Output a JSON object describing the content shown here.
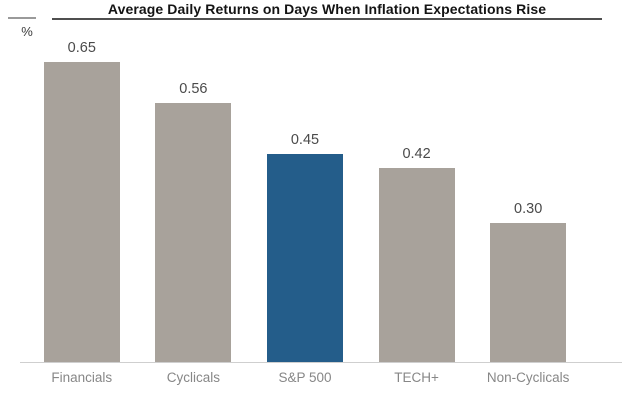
{
  "header": {
    "title": "Average Daily Returns on Days When Inflation Expectations Rise",
    "unit_label": "%"
  },
  "colors": {
    "bar_default": "#a8a29b",
    "bar_highlight": "#245d8a",
    "axis_line": "#cfcfcf",
    "title_underline": "#4f4f4f",
    "top_tick_line": "#9a9a9a",
    "value_label_text": "#4a4a4a",
    "category_label_text": "#878787",
    "title_text": "#141414"
  },
  "chart_data": {
    "type": "bar",
    "title": "Average Daily Returns on Days When Inflation Expectations Rise",
    "ylabel": "%",
    "xlabel": "",
    "categories": [
      "Financials",
      "Cyclicals",
      "S&P 500",
      "TECH+",
      "Non-Cyclicals"
    ],
    "values": [
      0.65,
      0.56,
      0.45,
      0.42,
      0.3
    ],
    "value_labels": [
      "0.65",
      "0.56",
      "0.45",
      "0.42",
      "0.30"
    ],
    "highlighted_category": "S&P 500",
    "series_colors": [
      "#a8a29b",
      "#a8a29b",
      "#245d8a",
      "#a8a29b",
      "#a8a29b"
    ],
    "ylim": [
      0,
      0.7
    ],
    "grid": false,
    "legend": false,
    "data_labels": true
  }
}
